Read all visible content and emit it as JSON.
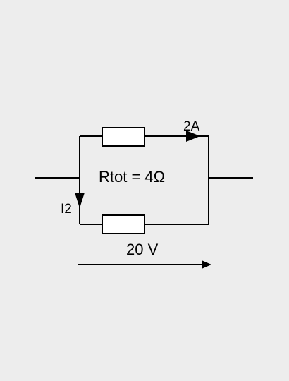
{
  "diagram": {
    "branch_current_top": "2A",
    "branch_current_bottom": "I2",
    "total_resistance": "Rtot = 4Ω",
    "voltage": "20 V"
  },
  "colors": {
    "background": "#ededed",
    "wire": "#000000",
    "resistor_fill": "#ffffff"
  }
}
